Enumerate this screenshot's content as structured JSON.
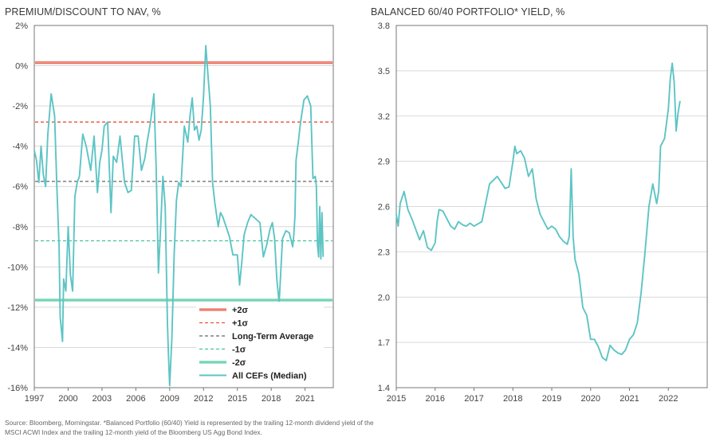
{
  "colors": {
    "teal": "#5ec4c4",
    "red": "#e8503a",
    "red_band": "#f4a58f",
    "gray": "#666666",
    "green_dash": "#43c49a",
    "green_band": "#9ed9a8",
    "grid": "#d9d9d9",
    "axis": "#777777"
  },
  "chart_data": [
    {
      "type": "line",
      "title": "PREMIUM/DISCOUNT TO NAV, %",
      "xlim": [
        1997,
        2023.5
      ],
      "ylim": [
        -16,
        2
      ],
      "y_ticks": [
        2,
        0,
        -2,
        -4,
        -6,
        -8,
        -10,
        -12,
        -14,
        -16
      ],
      "y_tick_labels": [
        "2%",
        "0%",
        "-2%",
        "-4%",
        "-6%",
        "-8%",
        "-10%",
        "-12%",
        "-14%",
        "-16%"
      ],
      "x_ticks": [
        1997,
        2000,
        2003,
        2006,
        2009,
        2012,
        2015,
        2018,
        2021
      ],
      "x_tick_labels": [
        "1997",
        "2000",
        "2003",
        "2006",
        "2009",
        "2012",
        "2015",
        "2018",
        "2021"
      ],
      "grid": "horizontal",
      "legend_position": "bottom-right",
      "reference_lines": [
        {
          "name": "+2σ",
          "value": 0.15,
          "style": "band",
          "color": "#e8503a"
        },
        {
          "name": "+1σ",
          "value": -2.8,
          "style": "dashed",
          "color": "#e8503a"
        },
        {
          "name": "Long-Term Average",
          "value": -5.75,
          "style": "dashed",
          "color": "#666666"
        },
        {
          "name": "-1σ",
          "value": -8.7,
          "style": "dashed",
          "color": "#43c49a"
        },
        {
          "name": "-2σ",
          "value": -11.65,
          "style": "band",
          "color": "#43c49a"
        }
      ],
      "series": [
        {
          "name": "All CEFs (Median)",
          "color": "#5ec4c4",
          "x": [
            1997.0,
            1997.2,
            1997.4,
            1997.6,
            1997.8,
            1998.0,
            1998.2,
            1998.5,
            1998.8,
            1999.0,
            1999.2,
            1999.3,
            1999.5,
            1999.6,
            1999.8,
            2000.0,
            2000.2,
            2000.4,
            2000.6,
            2000.8,
            2001.0,
            2001.3,
            2001.6,
            2002.0,
            2002.3,
            2002.6,
            2002.8,
            2003.0,
            2003.2,
            2003.5,
            2003.8,
            2004.0,
            2004.3,
            2004.6,
            2005.0,
            2005.3,
            2005.6,
            2005.9,
            2006.2,
            2006.5,
            2006.8,
            2007.0,
            2007.3,
            2007.6,
            2007.8,
            2008.0,
            2008.2,
            2008.4,
            2008.6,
            2008.8,
            2008.9,
            2009.0,
            2009.2,
            2009.4,
            2009.6,
            2009.8,
            2010.0,
            2010.3,
            2010.6,
            2010.8,
            2011.0,
            2011.2,
            2011.4,
            2011.6,
            2011.8,
            2012.0,
            2012.2,
            2012.4,
            2012.6,
            2012.8,
            2013.0,
            2013.3,
            2013.5,
            2013.7,
            2014.0,
            2014.3,
            2014.6,
            2015.0,
            2015.2,
            2015.4,
            2015.6,
            2015.9,
            2016.2,
            2016.6,
            2017.0,
            2017.3,
            2017.6,
            2017.9,
            2018.1,
            2018.3,
            2018.5,
            2018.7,
            2019.0,
            2019.3,
            2019.6,
            2019.9,
            2020.0,
            2020.1,
            2020.2,
            2020.4,
            2020.6,
            2020.9,
            2021.2,
            2021.5,
            2021.7,
            2021.9,
            2022.0,
            2022.1,
            2022.2,
            2022.3,
            2022.4,
            2022.5,
            2022.6
          ],
          "values": [
            -4.2,
            -4.7,
            -5.8,
            -4.0,
            -5.4,
            -6.0,
            -3.4,
            -1.4,
            -2.5,
            -6.0,
            -9.0,
            -12.5,
            -13.7,
            -10.6,
            -11.2,
            -8.0,
            -10.4,
            -11.2,
            -6.5,
            -5.8,
            -5.5,
            -3.4,
            -4.0,
            -5.2,
            -3.5,
            -6.3,
            -4.8,
            -4.2,
            -3.0,
            -2.8,
            -7.3,
            -4.5,
            -4.8,
            -3.5,
            -5.8,
            -6.3,
            -6.2,
            -3.5,
            -3.5,
            -5.2,
            -4.6,
            -3.8,
            -2.8,
            -1.4,
            -5.0,
            -10.3,
            -8.0,
            -5.5,
            -7.0,
            -12.8,
            -14.5,
            -15.9,
            -13.5,
            -9.3,
            -6.7,
            -5.8,
            -6.0,
            -3.0,
            -3.8,
            -2.5,
            -1.6,
            -3.2,
            -3.0,
            -3.7,
            -3.2,
            -1.5,
            1.0,
            -0.5,
            -2.0,
            -5.8,
            -6.8,
            -8.0,
            -7.3,
            -7.5,
            -8.0,
            -8.5,
            -9.4,
            -9.4,
            -10.9,
            -9.7,
            -8.4,
            -7.8,
            -7.4,
            -7.6,
            -7.8,
            -9.5,
            -8.9,
            -8.1,
            -7.8,
            -8.6,
            -10.6,
            -11.8,
            -8.6,
            -8.2,
            -8.3,
            -9.0,
            -8.4,
            -7.5,
            -4.7,
            -3.8,
            -2.8,
            -1.7,
            -1.5,
            -2.0,
            -5.6,
            -5.5,
            -6.0,
            -8.9,
            -9.5,
            -7.0,
            -9.6,
            -7.3,
            -9.5
          ]
        }
      ]
    },
    {
      "type": "line",
      "title": "BALANCED 60/40 PORTFOLIO* YIELD, %",
      "xlim": [
        2015,
        2023
      ],
      "ylim": [
        1.4,
        3.8
      ],
      "y_ticks": [
        3.8,
        3.5,
        3.2,
        2.9,
        2.6,
        2.3,
        2.0,
        1.7,
        1.4
      ],
      "y_tick_labels": [
        "3.8",
        "3.5",
        "3.2",
        "2.9",
        "2.6",
        "2.3",
        "2.0",
        "1.7",
        "1.4"
      ],
      "x_ticks": [
        2015,
        2016,
        2017,
        2018,
        2019,
        2020,
        2021,
        2022
      ],
      "x_tick_labels": [
        "2015",
        "2016",
        "2017",
        "2018",
        "2019",
        "2020",
        "2021",
        "2022"
      ],
      "grid": "horizontal",
      "series": [
        {
          "color": "#5ec4c4",
          "x": [
            2015.0,
            2015.05,
            2015.1,
            2015.2,
            2015.3,
            2015.4,
            2015.5,
            2015.6,
            2015.7,
            2015.8,
            2015.9,
            2016.0,
            2016.05,
            2016.1,
            2016.2,
            2016.3,
            2016.4,
            2016.5,
            2016.6,
            2016.7,
            2016.8,
            2016.9,
            2017.0,
            2017.2,
            2017.4,
            2017.6,
            2017.8,
            2017.9,
            2018.0,
            2018.05,
            2018.1,
            2018.2,
            2018.3,
            2018.4,
            2018.5,
            2018.6,
            2018.7,
            2018.8,
            2018.9,
            2019.0,
            2019.1,
            2019.2,
            2019.3,
            2019.4,
            2019.45,
            2019.5,
            2019.55,
            2019.6,
            2019.7,
            2019.8,
            2019.9,
            2020.0,
            2020.1,
            2020.2,
            2020.3,
            2020.4,
            2020.5,
            2020.6,
            2020.7,
            2020.8,
            2020.9,
            2021.0,
            2021.1,
            2021.2,
            2021.3,
            2021.4,
            2021.5,
            2021.6,
            2021.7,
            2021.75,
            2021.8,
            2021.9,
            2022.0,
            2022.05,
            2022.1,
            2022.15,
            2022.2,
            2022.25,
            2022.3
          ],
          "values": [
            2.55,
            2.47,
            2.62,
            2.7,
            2.58,
            2.52,
            2.45,
            2.38,
            2.44,
            2.33,
            2.31,
            2.36,
            2.5,
            2.58,
            2.57,
            2.52,
            2.47,
            2.45,
            2.5,
            2.48,
            2.47,
            2.49,
            2.47,
            2.5,
            2.75,
            2.8,
            2.72,
            2.73,
            2.9,
            3.0,
            2.95,
            2.97,
            2.92,
            2.8,
            2.85,
            2.65,
            2.55,
            2.5,
            2.45,
            2.47,
            2.45,
            2.4,
            2.37,
            2.35,
            2.4,
            2.85,
            2.4,
            2.25,
            2.15,
            1.93,
            1.88,
            1.72,
            1.72,
            1.67,
            1.6,
            1.58,
            1.68,
            1.65,
            1.63,
            1.62,
            1.65,
            1.72,
            1.75,
            1.83,
            2.03,
            2.3,
            2.6,
            2.75,
            2.62,
            2.7,
            3.0,
            3.05,
            3.25,
            3.45,
            3.55,
            3.42,
            3.1,
            3.22,
            3.3
          ]
        }
      ]
    }
  ],
  "footnote": "Source: Bloomberg, Morningstar. *Balanced Portfolio (60/40) Yield is represented by the trailing 12-month dividend yield of the MSCI ACWI Index and the trailing 12-month yield of the Bloomberg US Agg Bond Index."
}
